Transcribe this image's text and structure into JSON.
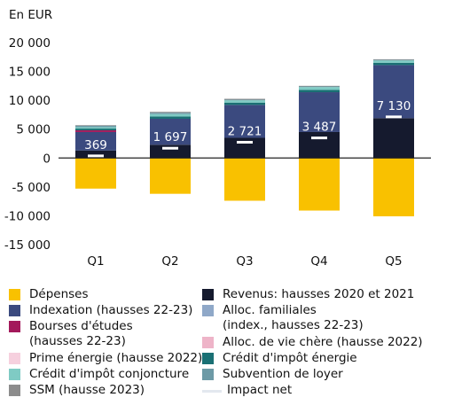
{
  "colors": {
    "depenses": "#f9c100",
    "revenus": "#151a2e",
    "indexation": "#3b4a7f",
    "alloc_familiales": "#8fa8c8",
    "bourses": "#a3195b",
    "alloc_vie_chere": "#eeb4c8",
    "prime_energie": "#f6d0de",
    "credit_impot_energie": "#1a7074",
    "credit_impot_conjoncture": "#7fcbc4",
    "subvention_loyer": "#6d9aa6",
    "ssm": "#8c8c8c",
    "impact_net": "#e3e8ef"
  },
  "chart_data": {
    "type": "bar",
    "stacked": true,
    "ylabel": "En EUR",
    "ylim": [
      -15000,
      20000
    ],
    "yticks": [
      -15000,
      -10000,
      -5000,
      0,
      5000,
      10000,
      15000,
      20000
    ],
    "ytick_labels": [
      "-15 000",
      "-10 000",
      "-5 000",
      "0",
      "5 000",
      "10 000",
      "15 000",
      "20 000"
    ],
    "categories": [
      "Q1",
      "Q2",
      "Q3",
      "Q4",
      "Q5"
    ],
    "series": [
      {
        "key": "depenses",
        "name": "Dépenses",
        "values": [
          -5300,
          -6200,
          -7400,
          -9100,
          -10100
        ]
      },
      {
        "key": "revenus",
        "name": "Revenus: hausses 2020 et 2021",
        "values": [
          1300,
          2300,
          3500,
          4500,
          6900
        ]
      },
      {
        "key": "indexation",
        "name": "Indexation (hausses 22-23)",
        "values": [
          3200,
          4500,
          5700,
          6900,
          9200
        ]
      },
      {
        "key": "alloc_familiales",
        "name": "Alloc. familiales\n(index., hausses 22-23)",
        "values": [
          0,
          0,
          0,
          0,
          0
        ]
      },
      {
        "key": "bourses",
        "name": "Bourses d'études\n(hausses 22-23)",
        "values": [
          300,
          0,
          0,
          0,
          0
        ]
      },
      {
        "key": "alloc_vie_chere",
        "name": "Alloc. de vie chère (hausse 2022)",
        "values": [
          0,
          0,
          0,
          0,
          0
        ]
      },
      {
        "key": "prime_energie",
        "name": "Prime énergie (hausse 2022)",
        "values": [
          0,
          0,
          0,
          0,
          0
        ]
      },
      {
        "key": "credit_impot_energie",
        "name": "Crédit d'impôt énergie",
        "values": [
          300,
          400,
          400,
          400,
          400
        ]
      },
      {
        "key": "credit_impot_conjoncture",
        "name": "Crédit d'impôt conjoncture",
        "values": [
          250,
          400,
          400,
          500,
          400
        ]
      },
      {
        "key": "subvention_loyer",
        "name": "Subvention de loyer",
        "values": [
          250,
          250,
          100,
          100,
          100
        ]
      },
      {
        "key": "ssm",
        "name": "SSM (hausse 2023)",
        "values": [
          100,
          150,
          150,
          100,
          100
        ]
      }
    ],
    "impact_net": {
      "name": "Impact net",
      "values": [
        369,
        1697,
        2721,
        3487,
        7130
      ],
      "labels": [
        "369",
        "1 697",
        "2 721",
        "3 487",
        "7 130"
      ]
    },
    "legend": {
      "position": "bottom",
      "left": [
        "depenses",
        "indexation",
        "bourses",
        "prime_energie",
        "credit_impot_conjoncture",
        "ssm"
      ],
      "right": [
        "revenus",
        "alloc_familiales",
        "alloc_vie_chere",
        "credit_impot_energie",
        "subvention_loyer",
        "impact_net"
      ]
    }
  }
}
